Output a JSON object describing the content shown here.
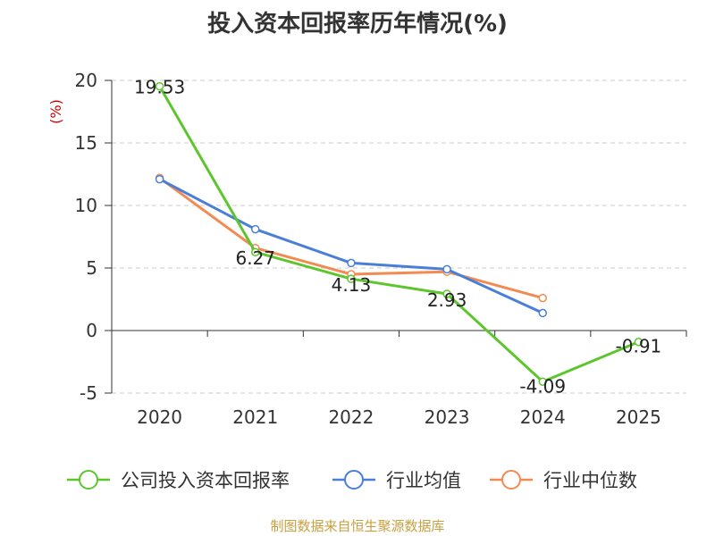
{
  "chart_data": {
    "type": "line",
    "title": "投入资本回报率历年情况(%)",
    "ylabel": "(%)",
    "categories": [
      "2020",
      "2021",
      "2022",
      "2023",
      "2024",
      "2025"
    ],
    "ylim": [
      -5,
      20
    ],
    "yticks": [
      -5,
      0,
      5,
      10,
      15,
      20
    ],
    "grid": true,
    "legend_position": "bottom",
    "series": [
      {
        "name": "公司投入资本回报率",
        "color": "#5cc62d",
        "values": [
          19.53,
          6.27,
          4.13,
          2.93,
          -4.09,
          -0.91
        ],
        "labels": [
          "19.53",
          "6.27",
          "4.13",
          "2.93",
          "-4.09",
          "-0.91"
        ]
      },
      {
        "name": "行业均值",
        "color": "#4a7fd8",
        "values": [
          12.1,
          8.1,
          5.4,
          4.9,
          1.4,
          null
        ]
      },
      {
        "name": "行业中位数",
        "color": "#f28a52",
        "values": [
          12.2,
          6.6,
          4.5,
          4.7,
          2.6,
          null
        ]
      }
    ]
  },
  "source": "制图数据来自恒生聚源数据库"
}
